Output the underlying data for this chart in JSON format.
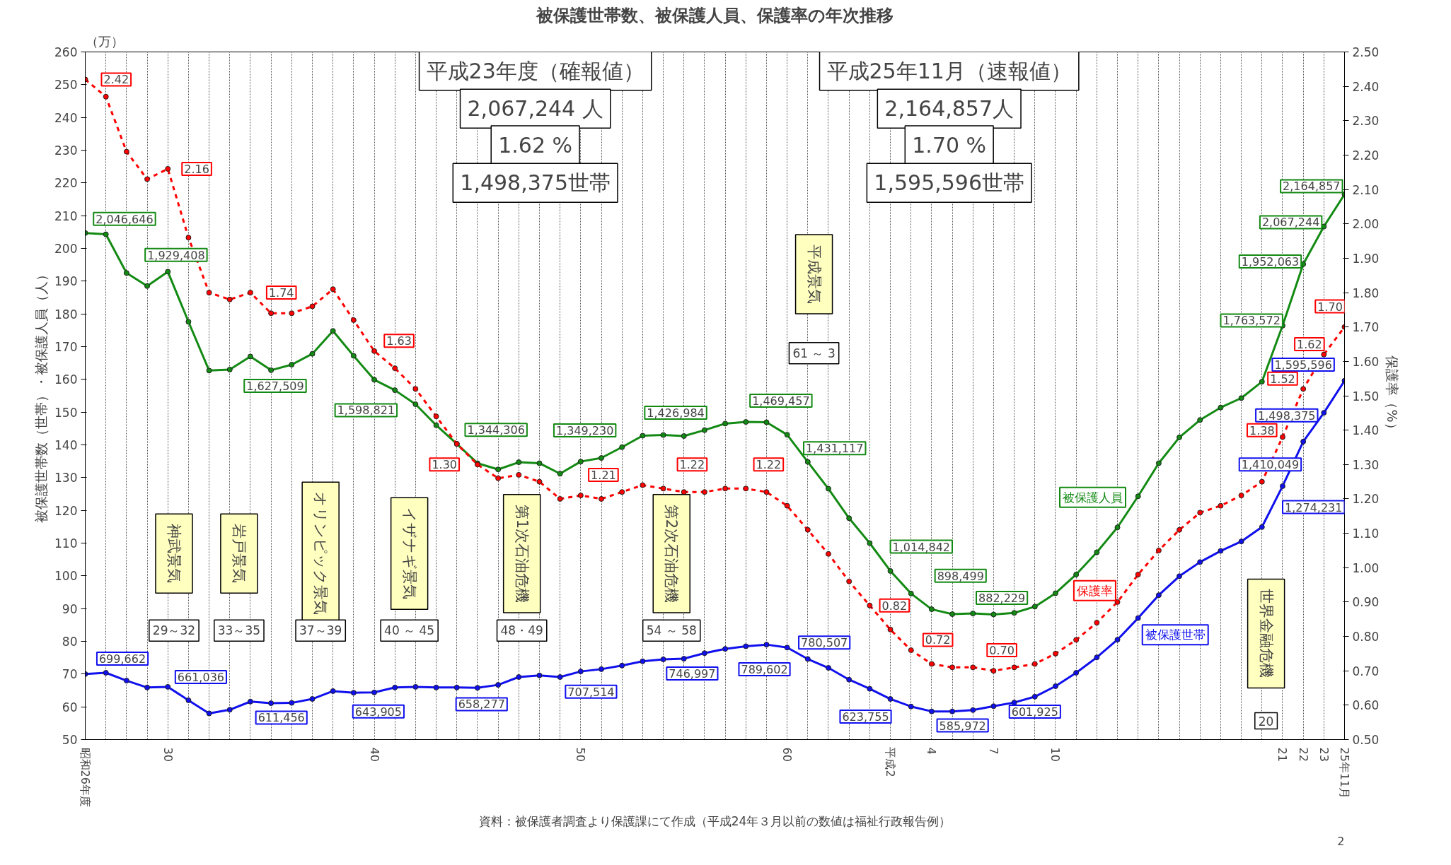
{
  "chart_data": {
    "type": "line",
    "title": "被保護世帯数、被保護人員、保護率の年次推移",
    "ylabel": "被保護世帯数（世帯）・被保護人員（人）",
    "y2label": "保護率（%）",
    "categories": [
      "昭和26年度",
      null,
      null,
      null,
      "30",
      null,
      null,
      null,
      null,
      null,
      null,
      null,
      null,
      null,
      "40",
      null,
      null,
      null,
      null,
      null,
      null,
      null,
      null,
      null,
      "50",
      null,
      null,
      null,
      null,
      null,
      null,
      null,
      null,
      null,
      "60",
      null,
      null,
      null,
      null,
      "平成2",
      null,
      "4",
      null,
      null,
      "7",
      null,
      null,
      "10",
      null,
      null,
      null,
      null,
      null,
      null,
      null,
      null,
      null,
      null,
      "21",
      "22",
      "23",
      "25年11月"
    ],
    "series": [
      {
        "name": "被保護人員",
        "color": "#138a13",
        "line_style": "solid",
        "values": [
          204.7,
          204.3,
          192.5,
          188.5,
          192.9,
          177.6,
          162.7,
          163.0,
          167.0,
          162.8,
          164.5,
          167.8,
          174.8,
          167.2,
          159.9,
          156.7,
          152.4,
          146.0,
          140.3,
          134.4,
          132.5,
          134.7,
          134.4,
          131.2,
          134.9,
          136.0,
          139.3,
          142.8,
          143.0,
          142.7,
          144.5,
          146.5,
          147.0,
          146.9,
          143.1,
          134.8,
          126.6,
          117.6,
          110.0,
          101.5,
          94.6,
          89.8,
          88.3,
          88.5,
          88.2,
          88.7,
          90.6,
          94.7,
          100.4,
          107.2,
          114.8,
          124.3,
          134.4,
          142.3,
          147.6,
          151.4,
          154.3,
          159.3,
          176.4,
          195.2,
          206.7,
          216.5
        ]
      },
      {
        "name": "保護率",
        "color": "#ff0000",
        "axis": "y2",
        "line_style": "dashed",
        "values": [
          2.42,
          2.37,
          2.21,
          2.13,
          2.16,
          1.96,
          1.8,
          1.78,
          1.8,
          1.74,
          1.74,
          1.76,
          1.81,
          1.72,
          1.63,
          1.58,
          1.52,
          1.44,
          1.36,
          1.3,
          1.26,
          1.27,
          1.25,
          1.2,
          1.21,
          1.2,
          1.22,
          1.24,
          1.23,
          1.22,
          1.22,
          1.23,
          1.23,
          1.22,
          1.18,
          1.11,
          1.04,
          0.96,
          0.89,
          0.82,
          0.76,
          0.72,
          0.71,
          0.71,
          0.7,
          0.71,
          0.72,
          0.75,
          0.79,
          0.84,
          0.9,
          0.98,
          1.05,
          1.11,
          1.16,
          1.18,
          1.21,
          1.25,
          1.38,
          1.52,
          1.62,
          1.7
        ],
        "value_labels": [
          "2.42",
          null,
          null,
          null,
          "2.16",
          null,
          null,
          null,
          null,
          "1.74",
          null,
          null,
          null,
          null,
          "1.63",
          null,
          null,
          null,
          null,
          "1.30",
          null,
          null,
          null,
          null,
          "1.21",
          null,
          null,
          null,
          null,
          "1.22",
          null,
          null,
          null,
          "1.22",
          null,
          null,
          null,
          null,
          null,
          "0.82",
          null,
          "0.72",
          null,
          null,
          "0.70",
          null,
          null,
          null,
          null,
          null,
          null,
          null,
          null,
          null,
          null,
          null,
          null,
          null,
          "1.38",
          "1.52",
          "1.62",
          "1.70"
        ]
      },
      {
        "name": "被保護世帯",
        "color": "#1010ee",
        "line_style": "solid",
        "values": [
          70.0,
          70.4,
          68.0,
          65.9,
          66.1,
          62.0,
          58.0,
          59.1,
          61.6,
          61.1,
          61.2,
          62.4,
          64.8,
          64.3,
          64.4,
          65.9,
          66.1,
          65.9,
          65.9,
          65.8,
          66.7,
          69.1,
          69.6,
          69.1,
          70.8,
          71.5,
          72.6,
          73.9,
          74.5,
          74.7,
          76.4,
          77.7,
          78.5,
          79.0,
          78.1,
          74.6,
          71.9,
          68.3,
          65.5,
          62.4,
          60.1,
          58.6,
          58.6,
          59.0,
          60.2,
          61.3,
          63.1,
          66.3,
          70.4,
          75.1,
          80.5,
          87.1,
          94.1,
          99.9,
          104.2,
          107.6,
          110.5,
          114.9,
          127.4,
          141.0,
          149.8,
          159.6
        ]
      }
    ],
    "marker": "circle",
    "grid": "x",
    "ylim": [
      50,
      260
    ],
    "yticks": [
      50,
      60,
      70,
      80,
      90,
      100,
      110,
      120,
      130,
      140,
      150,
      160,
      170,
      180,
      190,
      200,
      210,
      220,
      230,
      240,
      250,
      260
    ],
    "y2lim": [
      0.5,
      2.5
    ],
    "y2ticks": [
      {
        "value": 0.5,
        "label": "0.50"
      },
      {
        "value": 0.6,
        "label": "0.60"
      },
      {
        "value": 0.7,
        "label": "0.70"
      },
      {
        "value": 0.8,
        "label": "0.80"
      },
      {
        "value": 0.9,
        "label": "0.90"
      },
      {
        "value": 1.0,
        "label": "1.00"
      },
      {
        "value": 1.1,
        "label": "1.10"
      },
      {
        "value": 1.2,
        "label": "1.20"
      },
      {
        "value": 1.3,
        "label": "1.30"
      },
      {
        "value": 1.4,
        "label": "1.40"
      },
      {
        "value": 1.5,
        "label": "1.50"
      },
      {
        "value": 1.6,
        "label": "1.60"
      },
      {
        "value": 1.7,
        "label": "1.70"
      },
      {
        "value": 1.8,
        "label": "1.80"
      },
      {
        "value": 1.9,
        "label": "1.90"
      },
      {
        "value": 2.0,
        "label": "2.00"
      },
      {
        "value": 2.1,
        "label": "2.10"
      },
      {
        "value": 2.2,
        "label": "2.20"
      },
      {
        "value": 2.3,
        "label": "2.30"
      },
      {
        "value": 2.4,
        "label": "2.40"
      },
      {
        "value": 2.5,
        "label": "2.50"
      }
    ],
    "annotations": [
      "（万）",
      "平成23年度（確報値）",
      "2,067,244 人",
      "1.62 %",
      "1,498,375世帯",
      "平成25年11月（速報値）",
      "2,164,857人",
      "1.70 %",
      "1,595,596世帯",
      "神武景気",
      "29～32",
      "岩戸景気",
      "33～35",
      "オリンピック景気",
      "37～39",
      "イザナギ景気",
      "40 ～ 45",
      "第1次石油危機",
      "48・49",
      "第2次石油危機",
      "54 ～ 58",
      "平成景気",
      "61 ～ 3",
      "世界金融危機",
      "20",
      "資料：被保護者調査より保護課にて作成（平成24年３月以前の数値は福祉行政報告例）",
      "2",
      {
        "text": "2,046,646",
        "x": "昭和26年度",
        "y": 204.7
      },
      {
        "text": "1,929,408",
        "x": "30",
        "y": 192.9
      },
      "1,627,509",
      {
        "text": "1,598,821",
        "x": "40",
        "y": 159.9
      },
      "1,344,306",
      {
        "text": "1,349,230",
        "x": "50",
        "y": 134.9
      },
      "1,426,984",
      "1,469,457",
      {
        "text": "1,431,117",
        "x": "60",
        "y": 143.1
      },
      {
        "text": "1,014,842",
        "x": "平成2",
        "y": 101.5
      },
      {
        "text": "898,499",
        "x": "4",
        "y": 89.8
      },
      {
        "text": "882,229",
        "x": "7",
        "y": 88.2
      },
      {
        "text": "1,763,572",
        "x": "21",
        "y": 176.4
      },
      {
        "text": "1,952,063",
        "x": "22",
        "y": 195.2
      },
      {
        "text": "2,067,244",
        "x": "23",
        "y": 206.7
      },
      {
        "text": "2,164,857",
        "x": "25年11月",
        "y": 216.5
      },
      {
        "text": "699,662",
        "x": "昭和26年度",
        "y": 70.0
      },
      {
        "text": "661,036",
        "x": "30",
        "y": 66.1
      },
      "611,456",
      {
        "text": "643,905",
        "x": "40",
        "y": 64.4
      },
      "658,277",
      {
        "text": "707,514",
        "x": "50",
        "y": 70.8
      },
      "746,997",
      "789,602",
      {
        "text": "780,507",
        "x": "60",
        "y": 78.1
      },
      {
        "text": "623,755",
        "x": "平成2",
        "y": 62.4
      },
      {
        "text": "585,972",
        "x": "4",
        "y": 58.6
      },
      {
        "text": "601,925",
        "x": "7",
        "y": 60.2
      },
      {
        "text": "1,274,231",
        "x": "21",
        "y": 127.4
      },
      {
        "text": "1,410,049",
        "x": "22",
        "y": 141.0
      },
      {
        "text": "1,498,375",
        "x": "23",
        "y": 149.8
      },
      {
        "text": "1,595,596",
        "x": "25年11月",
        "y": 159.6
      }
    ]
  }
}
